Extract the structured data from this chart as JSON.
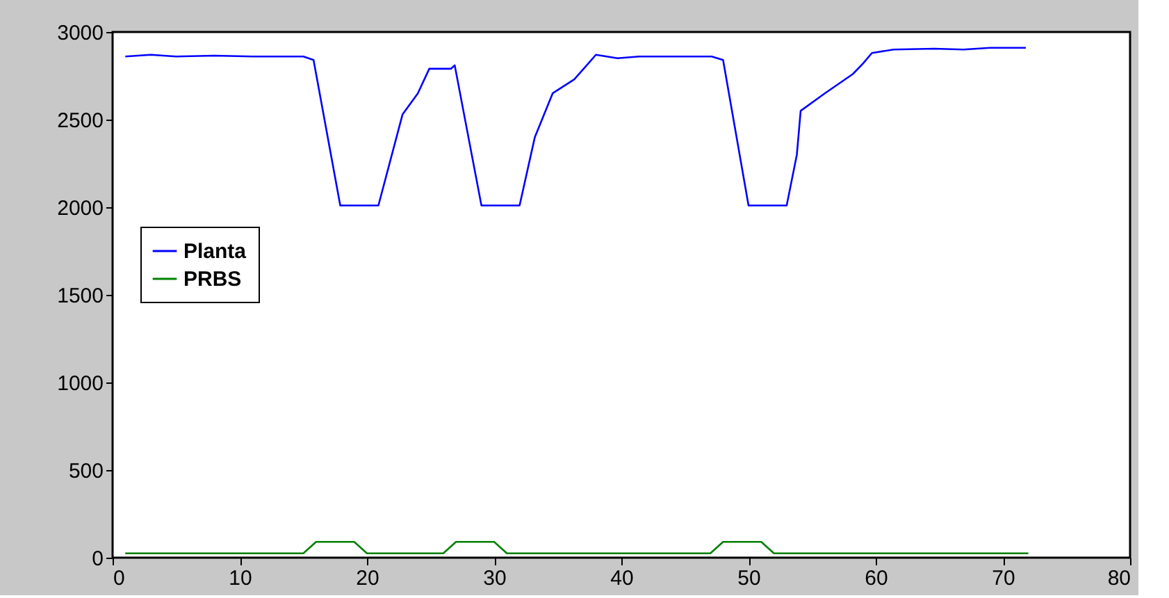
{
  "chart_data": {
    "type": "line",
    "xlim": [
      0,
      80
    ],
    "ylim": [
      0,
      3000
    ],
    "xticks": [
      0,
      10,
      20,
      30,
      40,
      50,
      60,
      70,
      80
    ],
    "yticks": [
      0,
      500,
      1000,
      1500,
      2000,
      2500,
      3000
    ],
    "grid": false,
    "legend": "top left",
    "marker": "none",
    "line_style": "solid",
    "series": [
      {
        "name": "Planta",
        "color": "#0000ff",
        "x": [
          1,
          3,
          5,
          8,
          11,
          15,
          15.8,
          17.9,
          20.9,
          22.8,
          24,
          24.9,
          26.6,
          26.9,
          29,
          32,
          33.2,
          34.6,
          36.3,
          37.4,
          38,
          39.7,
          41.4,
          47.1,
          48,
          50,
          53,
          53.8,
          54.1,
          56,
          58.2,
          59,
          59.7,
          61.4,
          64.6,
          66.9,
          69,
          71.8
        ],
        "values": [
          2860,
          2870,
          2860,
          2865,
          2860,
          2860,
          2840,
          2010,
          2010,
          2530,
          2650,
          2790,
          2790,
          2810,
          2010,
          2010,
          2400,
          2650,
          2730,
          2820,
          2870,
          2850,
          2860,
          2860,
          2840,
          2010,
          2010,
          2300,
          2550,
          2650,
          2760,
          2820,
          2880,
          2900,
          2905,
          2900,
          2910,
          2910
        ]
      },
      {
        "name": "PRBS",
        "color": "#008000",
        "x": [
          1,
          15,
          16,
          19,
          20,
          26,
          27,
          30,
          31,
          47,
          48,
          51,
          52,
          72
        ],
        "values": [
          25,
          25,
          90,
          90,
          25,
          25,
          90,
          90,
          25,
          25,
          90,
          90,
          25,
          25
        ]
      }
    ]
  }
}
